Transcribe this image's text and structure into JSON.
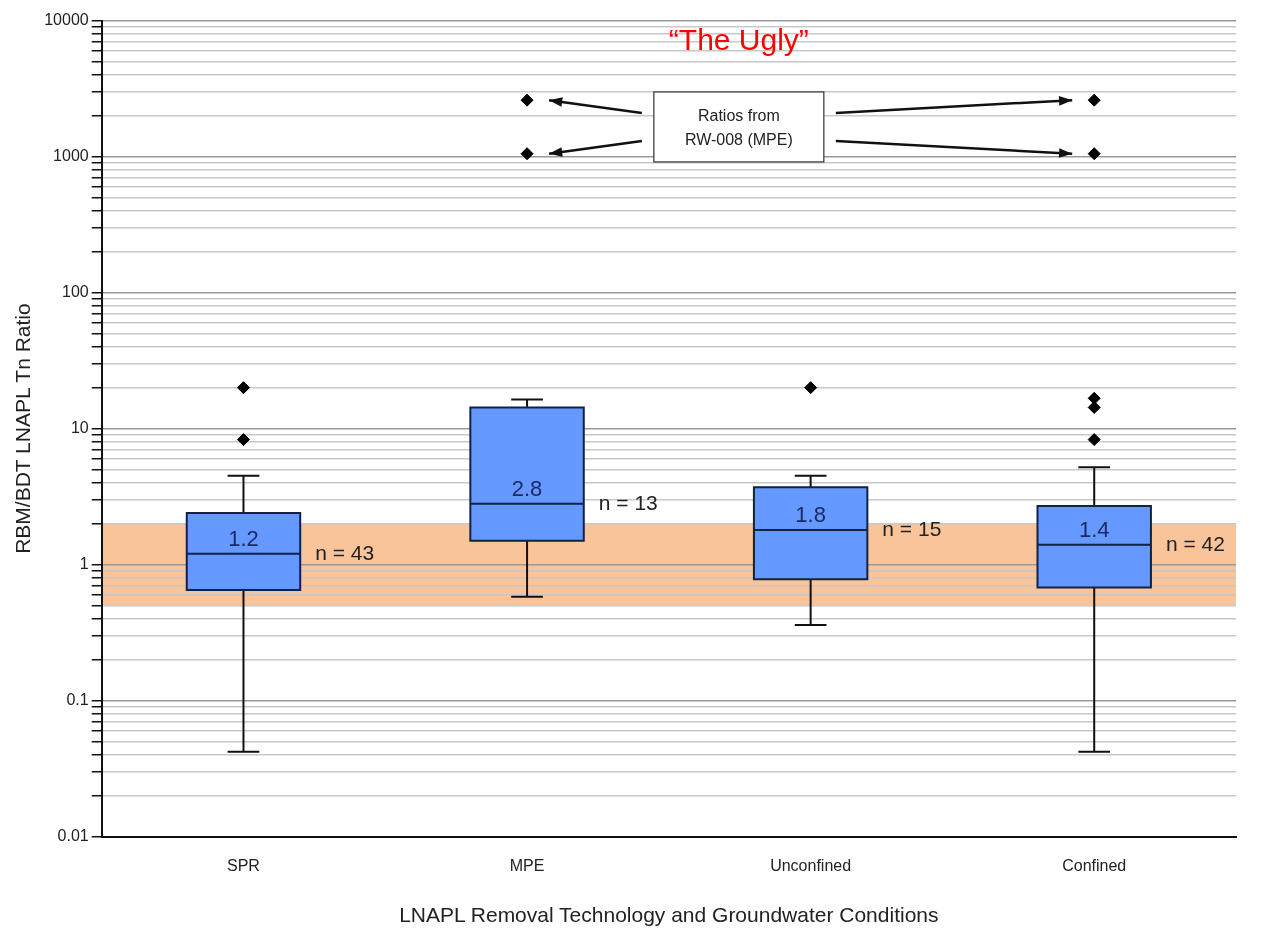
{
  "chart_data": {
    "type": "box",
    "title": "“The Ugly”",
    "xlabel": "LNAPL Removal Technology and Groundwater Conditions",
    "ylabel": "RBM/BDT LNAPL Tn Ratio",
    "categories": [
      "SPR",
      "MPE",
      "Unconfined",
      "Confined"
    ],
    "series": [
      {
        "color": "#6699ff",
        "value_labels": [
          "1.2",
          "2.8",
          "1.8",
          "1.4"
        ],
        "boxes": [
          {
            "low": 0.042,
            "q1": 0.65,
            "median": 1.2,
            "q3": 2.4,
            "high": 4.5,
            "outliers": [
              8.3,
              20
            ]
          },
          {
            "low": 0.58,
            "q1": 1.5,
            "median": 2.8,
            "q3": 14.3,
            "high": 16.4,
            "outliers": [
              1050,
              2600
            ]
          },
          {
            "low": 0.36,
            "q1": 0.78,
            "median": 1.8,
            "q3": 3.7,
            "high": 4.5,
            "outliers": [
              20
            ]
          },
          {
            "low": 0.042,
            "q1": 0.68,
            "median": 1.4,
            "q3": 2.7,
            "high": 5.2,
            "outliers": [
              8.3,
              14.3,
              16.7,
              1050,
              2600
            ]
          }
        ]
      }
    ],
    "log": "y",
    "grid": "y",
    "marker": "diamond",
    "ylim": [
      0.01,
      10000
    ],
    "yticks": [
      0.01,
      {
        "value": 0.02,
        "label": null
      },
      {
        "value": 0.03,
        "label": null
      },
      {
        "value": 0.04,
        "label": null
      },
      {
        "value": 0.05,
        "label": null
      },
      {
        "value": 0.06,
        "label": null
      },
      {
        "value": 0.07,
        "label": null
      },
      {
        "value": 0.08,
        "label": null
      },
      {
        "value": 0.09,
        "label": null
      },
      0.1,
      {
        "value": 0.2,
        "label": null
      },
      {
        "value": 0.3,
        "label": null
      },
      {
        "value": 0.4,
        "label": null
      },
      {
        "value": 0.5,
        "label": null
      },
      {
        "value": 0.6,
        "label": null
      },
      {
        "value": 0.7,
        "label": null
      },
      {
        "value": 0.8,
        "label": null
      },
      {
        "value": 0.9,
        "label": null
      },
      1,
      {
        "value": 2,
        "label": null
      },
      {
        "value": 3,
        "label": null
      },
      {
        "value": 4,
        "label": null
      },
      {
        "value": 5,
        "label": null
      },
      {
        "value": 6,
        "label": null
      },
      {
        "value": 7,
        "label": null
      },
      {
        "value": 8,
        "label": null
      },
      {
        "value": 9,
        "label": null
      },
      10,
      {
        "value": 20,
        "label": null
      },
      {
        "value": 30,
        "label": null
      },
      {
        "value": 40,
        "label": null
      },
      {
        "value": 50,
        "label": null
      },
      {
        "value": 60,
        "label": null
      },
      {
        "value": 70,
        "label": null
      },
      {
        "value": 80,
        "label": null
      },
      {
        "value": 90,
        "label": null
      },
      100,
      {
        "value": 200,
        "label": null
      },
      {
        "value": 300,
        "label": null
      },
      {
        "value": 400,
        "label": null
      },
      {
        "value": 500,
        "label": null
      },
      {
        "value": 600,
        "label": null
      },
      {
        "value": 700,
        "label": null
      },
      {
        "value": 800,
        "label": null
      },
      {
        "value": 900,
        "label": null
      },
      1000,
      {
        "value": 2000,
        "label": null
      },
      {
        "value": 3000,
        "label": null
      },
      {
        "value": 4000,
        "label": null
      },
      {
        "value": 5000,
        "label": null
      },
      {
        "value": 6000,
        "label": null
      },
      {
        "value": 7000,
        "label": null
      },
      {
        "value": 8000,
        "label": null
      },
      {
        "value": 9000,
        "label": null
      },
      10000
    ],
    "bands": [
      {
        "axis": "y",
        "from": 0.5,
        "to": 2,
        "color": "#f9c49a"
      }
    ],
    "annotations": [
      "n = 43",
      "n = 13",
      "n = 15",
      "n = 42",
      "Ratios from RW-008 (MPE)"
    ]
  }
}
